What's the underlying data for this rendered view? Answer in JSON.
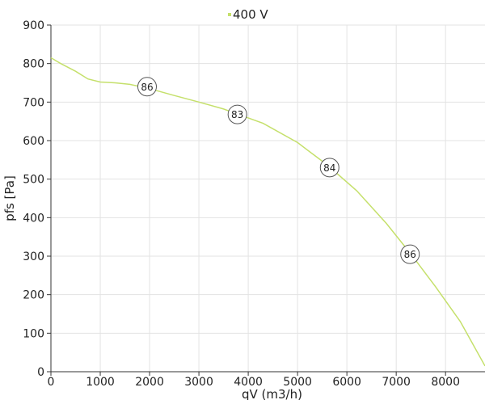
{
  "chart_data": {
    "type": "line",
    "title": "",
    "xlabel": "qV (m3/h)",
    "ylabel": "pfs [Pa]",
    "xlim": [
      0,
      8800
    ],
    "ylim": [
      0,
      900
    ],
    "xticks": [
      0,
      1000,
      2000,
      3000,
      4000,
      5000,
      6000,
      7000,
      8000
    ],
    "yticks": [
      0,
      100,
      200,
      300,
      400,
      500,
      600,
      700,
      800,
      900
    ],
    "grid": true,
    "legend_position": "top-center",
    "series": [
      {
        "name": "400 V",
        "color": "#c5e06b",
        "x": [
          0,
          200,
          500,
          750,
          1000,
          1300,
          1600,
          2000,
          2500,
          3000,
          3500,
          3800,
          4300,
          5000,
          5600,
          6200,
          6800,
          7300,
          7800,
          8300,
          8800
        ],
        "y": [
          815,
          800,
          780,
          760,
          752,
          750,
          746,
          735,
          717,
          700,
          682,
          668,
          645,
          595,
          537,
          470,
          385,
          305,
          220,
          130,
          15
        ]
      }
    ],
    "markers": [
      {
        "x": 1950,
        "y": 740,
        "label": "86"
      },
      {
        "x": 3780,
        "y": 668,
        "label": "83"
      },
      {
        "x": 5650,
        "y": 530,
        "label": "84"
      },
      {
        "x": 7280,
        "y": 305,
        "label": "86"
      }
    ]
  }
}
